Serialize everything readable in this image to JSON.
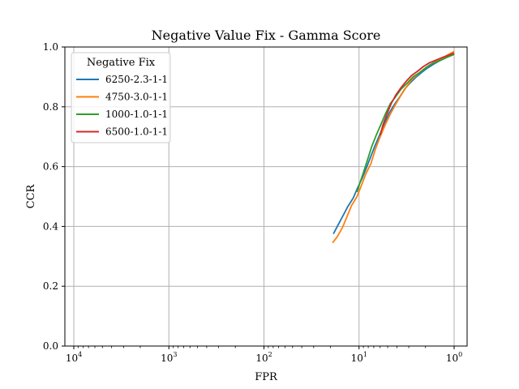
{
  "chart_data": {
    "type": "line",
    "title": "Negative Value Fix - Gamma Score",
    "xlabel": "FPR",
    "ylabel": "CCR",
    "xscale": "log-reversed",
    "xlim": [
      10000,
      1
    ],
    "ylim": [
      0.0,
      1.0
    ],
    "x_ticks": [
      {
        "base": "10",
        "exp": "4"
      },
      {
        "base": "10",
        "exp": "3"
      },
      {
        "base": "10",
        "exp": "2"
      },
      {
        "base": "10",
        "exp": "1"
      },
      {
        "base": "10",
        "exp": "0"
      }
    ],
    "y_ticks": [
      "0.0",
      "0.2",
      "0.4",
      "0.6",
      "0.8",
      "1.0"
    ],
    "grid": true,
    "legend": {
      "title": "Negative Fix",
      "placement": "top-left"
    },
    "series": [
      {
        "name": "6250-2.3-1-1",
        "color": "#1f77b4",
        "x": [
          18.6,
          16.6,
          14.8,
          13.2,
          11.5,
          10.5,
          9.3,
          8.5,
          7.6,
          6.8,
          6.0,
          5.4,
          4.8,
          4.2,
          3.7,
          3.3,
          2.9,
          2.5,
          2.2,
          1.9,
          1.6,
          1.4,
          1.2,
          1.0
        ],
        "y": [
          0.375,
          0.405,
          0.435,
          0.465,
          0.495,
          0.525,
          0.56,
          0.59,
          0.63,
          0.67,
          0.71,
          0.745,
          0.78,
          0.81,
          0.835,
          0.86,
          0.88,
          0.9,
          0.915,
          0.93,
          0.945,
          0.955,
          0.965,
          0.978
        ]
      },
      {
        "name": "4750-3.0-1-1",
        "color": "#ff7f0e",
        "x": [
          19.0,
          17.0,
          15.0,
          13.5,
          12.0,
          10.5,
          9.5,
          8.5,
          7.5,
          6.7,
          6.0,
          5.3,
          4.7,
          4.1,
          3.6,
          3.2,
          2.8,
          2.4,
          2.1,
          1.8,
          1.5,
          1.3,
          1.15,
          1.0
        ],
        "y": [
          0.345,
          0.365,
          0.395,
          0.43,
          0.47,
          0.5,
          0.535,
          0.575,
          0.61,
          0.66,
          0.7,
          0.74,
          0.775,
          0.81,
          0.84,
          0.865,
          0.89,
          0.91,
          0.925,
          0.94,
          0.955,
          0.965,
          0.975,
          0.985
        ]
      },
      {
        "name": "1000-1.0-1-1",
        "color": "#2ca02c",
        "x": [
          10.5,
          9.8,
          9.0,
          8.2,
          7.4,
          6.6,
          5.9,
          5.3,
          4.7,
          4.1,
          3.6,
          3.1,
          2.7,
          2.3,
          2.0,
          1.7,
          1.4,
          1.2,
          1.0
        ],
        "y": [
          0.515,
          0.545,
          0.58,
          0.62,
          0.665,
          0.705,
          0.74,
          0.775,
          0.81,
          0.835,
          0.86,
          0.88,
          0.9,
          0.915,
          0.93,
          0.945,
          0.955,
          0.965,
          0.975
        ]
      },
      {
        "name": "6500-1.0-1-1",
        "color": "#d62728",
        "x": [
          6.0,
          5.6,
          5.1,
          4.6,
          4.1,
          3.6,
          3.2,
          2.8,
          2.4,
          2.1,
          1.8,
          1.5,
          1.3,
          1.15,
          1.0
        ],
        "y": [
          0.705,
          0.74,
          0.775,
          0.81,
          0.84,
          0.865,
          0.885,
          0.905,
          0.92,
          0.935,
          0.948,
          0.958,
          0.966,
          0.972,
          0.98
        ]
      }
    ]
  }
}
